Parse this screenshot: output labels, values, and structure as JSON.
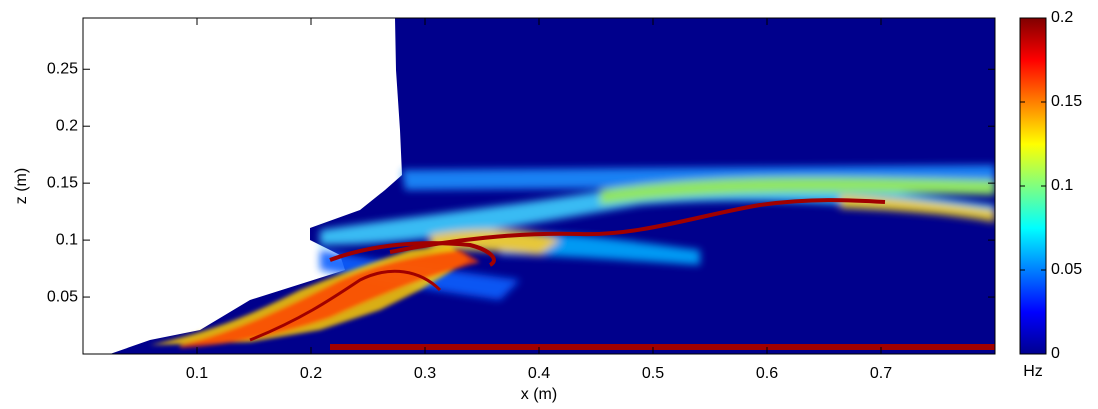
{
  "chart_data": {
    "type": "heatmap",
    "xlabel": "x (m)",
    "ylabel": "z (m)",
    "xlim": [
      0,
      0.8
    ],
    "ylim": [
      0,
      0.295
    ],
    "xticks": [
      0.1,
      0.2,
      0.3,
      0.4,
      0.5,
      0.6,
      0.7
    ],
    "yticks": [
      0.05,
      0.1,
      0.15,
      0.2,
      0.25
    ],
    "colorbar": {
      "label": "Hz",
      "lim": [
        0,
        0.2
      ],
      "ticks": [
        0,
        0.05,
        0.1,
        0.15,
        0.2
      ],
      "colormap": "jet"
    }
  }
}
